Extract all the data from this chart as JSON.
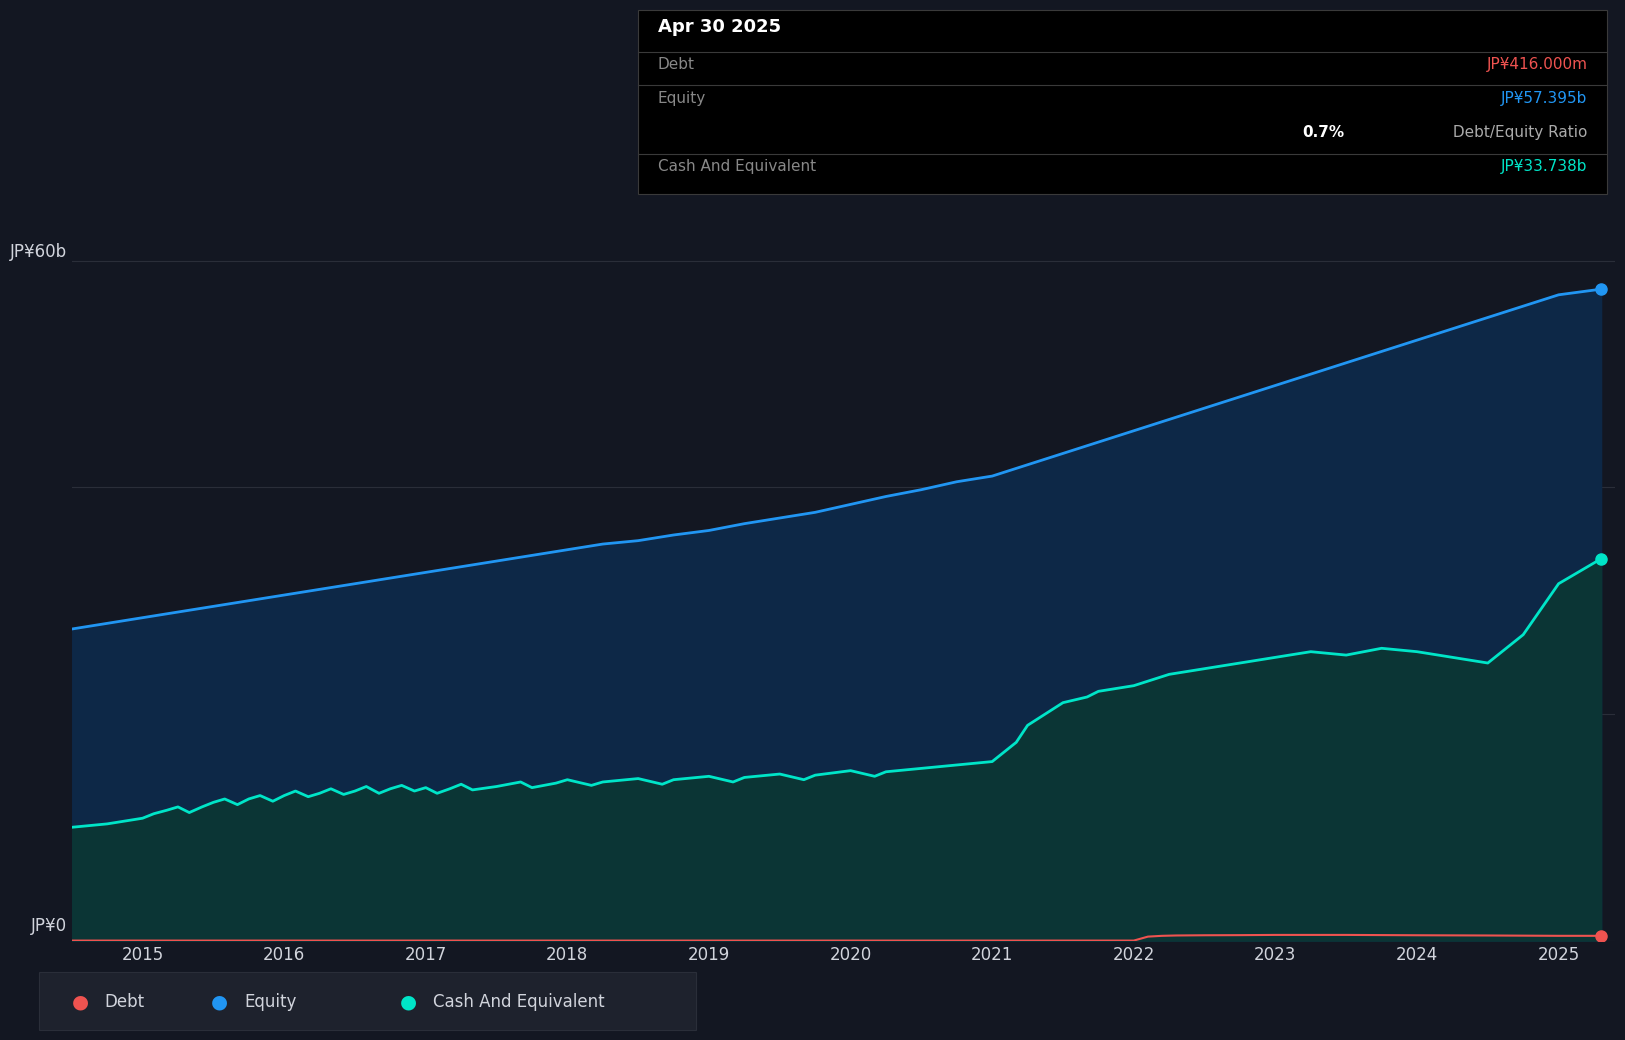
{
  "bg_color": "#131722",
  "plot_bg_color": "#131722",
  "grid_color": "#2a2e39",
  "text_color": "#d1d4dc",
  "equity_color": "#2196f3",
  "cash_color": "#00e5c8",
  "debt_color": "#ef5350",
  "ylabel_60": "JP¥60b",
  "ylabel_0": "JP¥0",
  "xticks": [
    2015,
    2016,
    2017,
    2018,
    2019,
    2020,
    2021,
    2022,
    2023,
    2024,
    2025
  ],
  "ylim": [
    0,
    65
  ],
  "tooltip_date": "Apr 30 2025",
  "tooltip_debt_label": "Debt",
  "tooltip_debt_value": "JP¥416.000m",
  "tooltip_equity_label": "Equity",
  "tooltip_equity_value": "JP¥57.395b",
  "tooltip_ratio_bold": "0.7%",
  "tooltip_ratio_normal": " Debt/Equity Ratio",
  "tooltip_cash_label": "Cash And Equivalent",
  "tooltip_cash_value": "JP¥33.738b",
  "equity_data_x": [
    2014.5,
    2014.75,
    2015.0,
    2015.25,
    2015.5,
    2015.75,
    2016.0,
    2016.25,
    2016.5,
    2016.75,
    2017.0,
    2017.25,
    2017.5,
    2017.75,
    2018.0,
    2018.25,
    2018.5,
    2018.75,
    2019.0,
    2019.25,
    2019.5,
    2019.75,
    2020.0,
    2020.25,
    2020.5,
    2020.75,
    2021.0,
    2021.25,
    2021.5,
    2021.75,
    2022.0,
    2022.25,
    2022.5,
    2022.75,
    2023.0,
    2023.25,
    2023.5,
    2023.75,
    2024.0,
    2024.25,
    2024.5,
    2024.75,
    2025.0,
    2025.3
  ],
  "equity_data_y": [
    27.5,
    28.0,
    28.5,
    29.0,
    29.5,
    30.0,
    30.5,
    31.0,
    31.5,
    32.0,
    32.5,
    33.0,
    33.5,
    34.0,
    34.5,
    35.0,
    35.3,
    35.8,
    36.2,
    36.8,
    37.3,
    37.8,
    38.5,
    39.2,
    39.8,
    40.5,
    41.0,
    42.0,
    43.0,
    44.0,
    45.0,
    46.0,
    47.0,
    48.0,
    49.0,
    50.0,
    51.0,
    52.0,
    53.0,
    54.0,
    55.0,
    56.0,
    57.0,
    57.5
  ],
  "cash_data_x": [
    2014.5,
    2014.75,
    2015.0,
    2015.08,
    2015.17,
    2015.25,
    2015.33,
    2015.42,
    2015.5,
    2015.58,
    2015.67,
    2015.75,
    2015.83,
    2015.92,
    2016.0,
    2016.08,
    2016.17,
    2016.25,
    2016.33,
    2016.42,
    2016.5,
    2016.58,
    2016.67,
    2016.75,
    2016.83,
    2016.92,
    2017.0,
    2017.08,
    2017.17,
    2017.25,
    2017.33,
    2017.5,
    2017.67,
    2017.75,
    2017.92,
    2018.0,
    2018.17,
    2018.25,
    2018.5,
    2018.67,
    2018.75,
    2019.0,
    2019.17,
    2019.25,
    2019.5,
    2019.67,
    2019.75,
    2020.0,
    2020.17,
    2020.25,
    2020.5,
    2020.75,
    2021.0,
    2021.17,
    2021.25,
    2021.5,
    2021.67,
    2021.75,
    2022.0,
    2022.25,
    2022.5,
    2022.75,
    2023.0,
    2023.25,
    2023.5,
    2023.75,
    2024.0,
    2024.25,
    2024.5,
    2024.75,
    2025.0,
    2025.3
  ],
  "cash_data_y": [
    10.0,
    10.3,
    10.8,
    11.2,
    11.5,
    11.8,
    11.3,
    11.8,
    12.2,
    12.5,
    12.0,
    12.5,
    12.8,
    12.3,
    12.8,
    13.2,
    12.7,
    13.0,
    13.4,
    12.9,
    13.2,
    13.6,
    13.0,
    13.4,
    13.7,
    13.2,
    13.5,
    13.0,
    13.4,
    13.8,
    13.3,
    13.6,
    14.0,
    13.5,
    13.9,
    14.2,
    13.7,
    14.0,
    14.3,
    13.8,
    14.2,
    14.5,
    14.0,
    14.4,
    14.7,
    14.2,
    14.6,
    15.0,
    14.5,
    14.9,
    15.2,
    15.5,
    15.8,
    17.5,
    19.0,
    21.0,
    21.5,
    22.0,
    22.5,
    23.5,
    24.0,
    24.5,
    25.0,
    25.5,
    25.2,
    25.8,
    25.5,
    25.0,
    24.5,
    27.0,
    31.5,
    33.7
  ],
  "debt_data_x": [
    2014.5,
    2015.0,
    2015.5,
    2016.0,
    2016.5,
    2017.0,
    2017.5,
    2018.0,
    2018.5,
    2019.0,
    2019.5,
    2020.0,
    2020.5,
    2021.0,
    2021.5,
    2021.75,
    2022.0,
    2022.1,
    2022.2,
    2022.3,
    2022.5,
    2022.75,
    2023.0,
    2023.5,
    2024.0,
    2024.5,
    2025.0,
    2025.3
  ],
  "debt_data_y": [
    0.0,
    0.0,
    0.0,
    0.0,
    0.0,
    0.0,
    0.0,
    0.0,
    0.0,
    0.0,
    0.0,
    0.0,
    0.0,
    0.0,
    0.0,
    0.0,
    0.0,
    0.35,
    0.42,
    0.45,
    0.47,
    0.48,
    0.5,
    0.5,
    0.47,
    0.45,
    0.42,
    0.42
  ],
  "legend_items": [
    {
      "label": "Debt",
      "color": "#ef5350"
    },
    {
      "label": "Equity",
      "color": "#2196f3"
    },
    {
      "label": "Cash And Equivalent",
      "color": "#00e5c8"
    }
  ]
}
